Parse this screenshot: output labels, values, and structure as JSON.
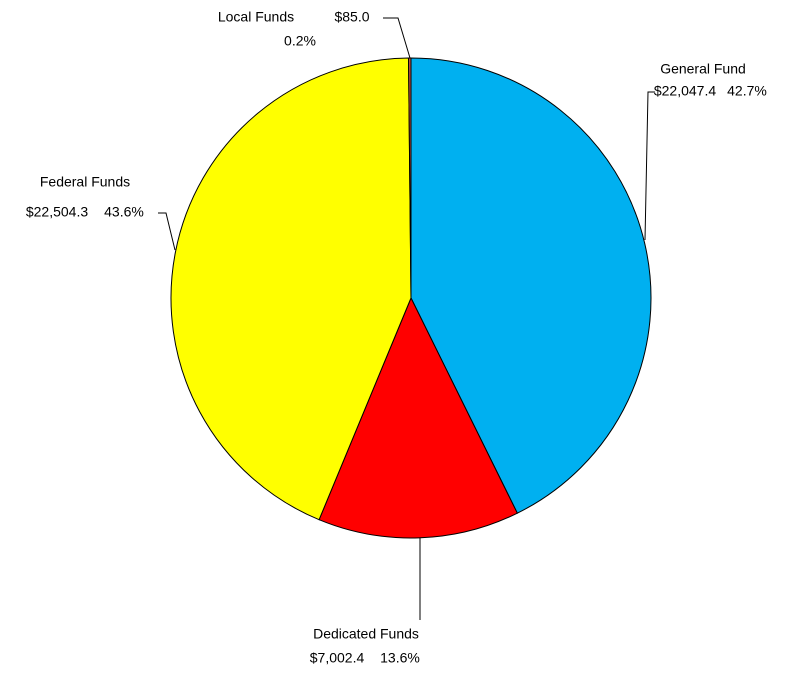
{
  "chart_data": {
    "type": "pie",
    "categories": [
      "General Fund",
      "Dedicated Funds",
      "Federal Funds",
      "Local Funds"
    ],
    "values": [
      22047.4,
      7002.4,
      22504.3,
      85.0
    ],
    "value_labels": [
      "$22,047.4",
      "$7,002.4",
      "$22,504.3",
      "$85.0"
    ],
    "percent_labels": [
      "42.7%",
      "13.6%",
      "43.6%",
      "0.2%"
    ],
    "colors": [
      "#00b0f0",
      "#ff0000",
      "#ffff00",
      "#c0504d"
    ]
  }
}
